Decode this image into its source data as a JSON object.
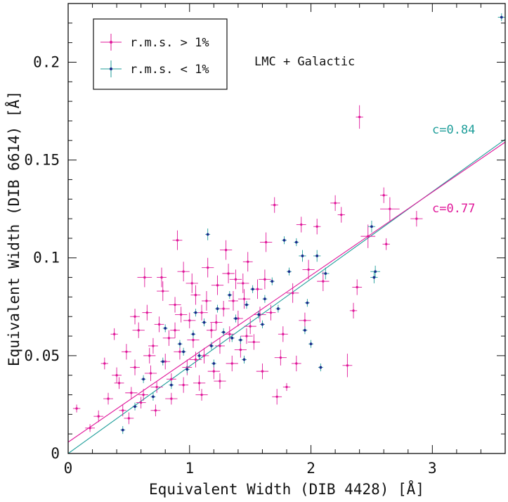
{
  "chart_data": {
    "type": "scatter",
    "xlabel": "Equivalent Width (DIB 4428) [Å]",
    "ylabel": "Equivalent Width (DIB 6614) [Å]",
    "xlim": [
      0,
      3.6
    ],
    "ylim": [
      0,
      0.23
    ],
    "xticks": [
      {
        "value": 0,
        "label": "0"
      },
      {
        "value": 1,
        "label": "1"
      },
      {
        "value": 2,
        "label": "2"
      },
      {
        "value": 3,
        "label": "3"
      }
    ],
    "yticks": [
      {
        "value": 0,
        "label": "0"
      },
      {
        "value": 0.05,
        "label": "0.05"
      },
      {
        "value": 0.1,
        "label": "0.1"
      },
      {
        "value": 0.15,
        "label": "0.15"
      },
      {
        "value": 0.2,
        "label": "0.2"
      }
    ],
    "annotation": "LMC + Galactic",
    "legend": {
      "placement": "top-left",
      "entries": [
        {
          "label": "r.m.s. > 1%",
          "color": "#e0189a"
        },
        {
          "label": "r.m.s. < 1%",
          "color": "#1f9e9a",
          "marker_color": "#1a2a8c"
        }
      ]
    },
    "series": [
      {
        "name": "r.m.s. > 1%",
        "color": "#e0189a",
        "points": [
          [
            0.07,
            0.023,
            0.03,
            0.002
          ],
          [
            0.18,
            0.013,
            0.04,
            0.002
          ],
          [
            0.25,
            0.019,
            0.04,
            0.003
          ],
          [
            0.3,
            0.046,
            0.03,
            0.003
          ],
          [
            0.33,
            0.028,
            0.04,
            0.003
          ],
          [
            0.38,
            0.061,
            0.03,
            0.003
          ],
          [
            0.42,
            0.036,
            0.04,
            0.003
          ],
          [
            0.45,
            0.022,
            0.03,
            0.003
          ],
          [
            0.48,
            0.052,
            0.04,
            0.004
          ],
          [
            0.52,
            0.031,
            0.05,
            0.003
          ],
          [
            0.55,
            0.044,
            0.04,
            0.004
          ],
          [
            0.58,
            0.063,
            0.05,
            0.004
          ],
          [
            0.6,
            0.026,
            0.04,
            0.003
          ],
          [
            0.63,
            0.09,
            0.06,
            0.005
          ],
          [
            0.65,
            0.072,
            0.04,
            0.004
          ],
          [
            0.68,
            0.041,
            0.05,
            0.004
          ],
          [
            0.7,
            0.055,
            0.04,
            0.004
          ],
          [
            0.73,
            0.034,
            0.05,
            0.003
          ],
          [
            0.75,
            0.066,
            0.04,
            0.004
          ],
          [
            0.78,
            0.083,
            0.05,
            0.005
          ],
          [
            0.8,
            0.047,
            0.04,
            0.004
          ],
          [
            0.83,
            0.059,
            0.05,
            0.004
          ],
          [
            0.85,
            0.038,
            0.04,
            0.003
          ],
          [
            0.88,
            0.076,
            0.05,
            0.004
          ],
          [
            0.9,
            0.109,
            0.04,
            0.005
          ],
          [
            0.92,
            0.052,
            0.05,
            0.004
          ],
          [
            0.95,
            0.093,
            0.05,
            0.005
          ],
          [
            0.98,
            0.044,
            0.04,
            0.004
          ],
          [
            1.0,
            0.068,
            0.05,
            0.004
          ],
          [
            1.03,
            0.058,
            0.05,
            0.004
          ],
          [
            1.05,
            0.081,
            0.04,
            0.005
          ],
          [
            1.08,
            0.036,
            0.05,
            0.004
          ],
          [
            1.1,
            0.072,
            0.05,
            0.004
          ],
          [
            1.12,
            0.05,
            0.04,
            0.004
          ],
          [
            1.15,
            0.095,
            0.05,
            0.005
          ],
          [
            1.18,
            0.063,
            0.04,
            0.004
          ],
          [
            1.2,
            0.042,
            0.05,
            0.004
          ],
          [
            1.23,
            0.086,
            0.05,
            0.005
          ],
          [
            1.25,
            0.055,
            0.04,
            0.004
          ],
          [
            1.28,
            0.074,
            0.05,
            0.004
          ],
          [
            1.3,
            0.104,
            0.05,
            0.005
          ],
          [
            1.33,
            0.061,
            0.04,
            0.004
          ],
          [
            1.35,
            0.046,
            0.05,
            0.004
          ],
          [
            1.38,
            0.089,
            0.05,
            0.005
          ],
          [
            1.4,
            0.069,
            0.04,
            0.004
          ],
          [
            1.42,
            0.053,
            0.05,
            0.004
          ],
          [
            1.45,
            0.079,
            0.05,
            0.005
          ],
          [
            1.48,
            0.098,
            0.04,
            0.005
          ],
          [
            1.5,
            0.065,
            0.05,
            0.004
          ],
          [
            1.53,
            0.057,
            0.05,
            0.004
          ],
          [
            1.56,
            0.084,
            0.04,
            0.005
          ],
          [
            1.6,
            0.042,
            0.05,
            0.004
          ],
          [
            1.63,
            0.108,
            0.05,
            0.005
          ],
          [
            1.67,
            0.072,
            0.04,
            0.004
          ],
          [
            1.7,
            0.127,
            0.03,
            0.004
          ],
          [
            1.72,
            0.029,
            0.04,
            0.004
          ],
          [
            1.75,
            0.049,
            0.05,
            0.004
          ],
          [
            1.8,
            0.034,
            0.03,
            0.002
          ],
          [
            1.85,
            0.082,
            0.05,
            0.005
          ],
          [
            1.88,
            0.046,
            0.04,
            0.004
          ],
          [
            1.92,
            0.117,
            0.04,
            0.004
          ],
          [
            1.98,
            0.094,
            0.05,
            0.005
          ],
          [
            2.05,
            0.116,
            0.03,
            0.004
          ],
          [
            2.1,
            0.088,
            0.05,
            0.005
          ],
          [
            2.2,
            0.128,
            0.04,
            0.004
          ],
          [
            2.25,
            0.122,
            0.03,
            0.004
          ],
          [
            2.3,
            0.045,
            0.04,
            0.006
          ],
          [
            2.35,
            0.073,
            0.03,
            0.004
          ],
          [
            2.38,
            0.085,
            0.04,
            0.004
          ],
          [
            2.4,
            0.172,
            0.03,
            0.006
          ],
          [
            2.47,
            0.111,
            0.06,
            0.006
          ],
          [
            2.6,
            0.132,
            0.03,
            0.004
          ],
          [
            2.62,
            0.107,
            0.03,
            0.003
          ],
          [
            2.65,
            0.125,
            0.08,
            0.006
          ],
          [
            2.87,
            0.12,
            0.05,
            0.004
          ],
          [
            0.5,
            0.018,
            0.04,
            0.003
          ],
          [
            0.62,
            0.03,
            0.04,
            0.003
          ],
          [
            0.72,
            0.022,
            0.04,
            0.003
          ],
          [
            0.85,
            0.028,
            0.05,
            0.003
          ],
          [
            0.95,
            0.035,
            0.04,
            0.004
          ],
          [
            1.1,
            0.03,
            0.05,
            0.003
          ],
          [
            1.25,
            0.037,
            0.05,
            0.004
          ],
          [
            0.4,
            0.04,
            0.04,
            0.004
          ],
          [
            0.67,
            0.05,
            0.05,
            0.004
          ],
          [
            0.88,
            0.063,
            0.04,
            0.004
          ],
          [
            1.05,
            0.048,
            0.05,
            0.004
          ],
          [
            1.22,
            0.067,
            0.05,
            0.004
          ],
          [
            1.36,
            0.078,
            0.04,
            0.005
          ],
          [
            1.47,
            0.06,
            0.05,
            0.004
          ],
          [
            1.58,
            0.071,
            0.05,
            0.004
          ],
          [
            0.55,
            0.07,
            0.04,
            0.004
          ],
          [
            0.77,
            0.09,
            0.04,
            0.005
          ],
          [
            0.93,
            0.071,
            0.05,
            0.004
          ],
          [
            1.02,
            0.087,
            0.05,
            0.005
          ],
          [
            1.14,
            0.078,
            0.04,
            0.005
          ],
          [
            1.32,
            0.092,
            0.05,
            0.005
          ],
          [
            1.44,
            0.087,
            0.05,
            0.005
          ],
          [
            1.62,
            0.089,
            0.05,
            0.005
          ],
          [
            1.77,
            0.061,
            0.04,
            0.004
          ],
          [
            1.95,
            0.068,
            0.05,
            0.004
          ]
        ]
      },
      {
        "name": "r.m.s. < 1%",
        "color": "#1f9e9a",
        "marker_color": "#1a2a8c",
        "points": [
          [
            0.45,
            0.012,
            0.02,
            0.002
          ],
          [
            0.55,
            0.024,
            0.02,
            0.002
          ],
          [
            0.62,
            0.038,
            0.02,
            0.002
          ],
          [
            0.7,
            0.029,
            0.02,
            0.002
          ],
          [
            0.78,
            0.047,
            0.02,
            0.002
          ],
          [
            0.85,
            0.035,
            0.02,
            0.002
          ],
          [
            0.92,
            0.056,
            0.02,
            0.002
          ],
          [
            0.98,
            0.043,
            0.02,
            0.002
          ],
          [
            1.03,
            0.061,
            0.02,
            0.002
          ],
          [
            1.08,
            0.05,
            0.02,
            0.002
          ],
          [
            1.12,
            0.067,
            0.02,
            0.002
          ],
          [
            1.15,
            0.112,
            0.02,
            0.003
          ],
          [
            1.18,
            0.055,
            0.02,
            0.002
          ],
          [
            1.23,
            0.074,
            0.02,
            0.002
          ],
          [
            1.28,
            0.062,
            0.02,
            0.002
          ],
          [
            1.33,
            0.081,
            0.02,
            0.002
          ],
          [
            1.38,
            0.069,
            0.02,
            0.002
          ],
          [
            1.42,
            0.058,
            0.02,
            0.002
          ],
          [
            1.47,
            0.076,
            0.02,
            0.002
          ],
          [
            1.52,
            0.084,
            0.02,
            0.002
          ],
          [
            1.57,
            0.071,
            0.02,
            0.002
          ],
          [
            1.62,
            0.079,
            0.02,
            0.002
          ],
          [
            1.68,
            0.088,
            0.02,
            0.002
          ],
          [
            1.73,
            0.074,
            0.02,
            0.002
          ],
          [
            1.78,
            0.109,
            0.02,
            0.002
          ],
          [
            1.82,
            0.093,
            0.02,
            0.002
          ],
          [
            1.88,
            0.108,
            0.02,
            0.002
          ],
          [
            1.93,
            0.101,
            0.03,
            0.003
          ],
          [
            1.97,
            0.077,
            0.02,
            0.002
          ],
          [
            2.0,
            0.056,
            0.02,
            0.002
          ],
          [
            2.05,
            0.101,
            0.03,
            0.003
          ],
          [
            2.08,
            0.044,
            0.02,
            0.002
          ],
          [
            2.12,
            0.092,
            0.03,
            0.003
          ],
          [
            2.5,
            0.116,
            0.03,
            0.003
          ],
          [
            2.53,
            0.093,
            0.04,
            0.003
          ],
          [
            2.52,
            0.09,
            0.03,
            0.003
          ],
          [
            3.57,
            0.223,
            0.03,
            0.002
          ],
          [
            0.8,
            0.064,
            0.02,
            0.002
          ],
          [
            0.95,
            0.052,
            0.02,
            0.002
          ],
          [
            1.05,
            0.072,
            0.02,
            0.002
          ],
          [
            1.2,
            0.046,
            0.02,
            0.002
          ],
          [
            1.35,
            0.059,
            0.02,
            0.002
          ],
          [
            1.45,
            0.048,
            0.02,
            0.002
          ],
          [
            1.6,
            0.066,
            0.02,
            0.002
          ],
          [
            1.95,
            0.063,
            0.02,
            0.002
          ]
        ]
      }
    ],
    "fits": [
      {
        "label": "c=0.84",
        "color": "#1f9e9a",
        "intercept": 0.0,
        "slope": 0.0446
      },
      {
        "label": "c=0.77",
        "color": "#e0189a",
        "intercept": 0.0058,
        "slope": 0.0426
      }
    ]
  }
}
